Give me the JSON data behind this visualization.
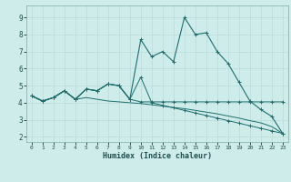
{
  "xlabel": "Humidex (Indice chaleur)",
  "bg_color": "#ceecea",
  "grid_color": "#b8ddd9",
  "line_color": "#1e6e6e",
  "xlim": [
    -0.5,
    23.5
  ],
  "ylim": [
    1.7,
    9.7
  ],
  "xticks": [
    0,
    1,
    2,
    3,
    4,
    5,
    6,
    7,
    8,
    9,
    10,
    11,
    12,
    13,
    14,
    15,
    16,
    17,
    18,
    19,
    20,
    21,
    22,
    23
  ],
  "yticks": [
    2,
    3,
    4,
    5,
    6,
    7,
    8,
    9
  ],
  "line1_x": [
    0,
    1,
    2,
    3,
    4,
    5,
    6,
    7,
    8,
    9,
    10,
    11,
    12,
    13,
    14,
    15,
    16,
    17,
    18,
    19,
    20,
    21,
    22,
    23
  ],
  "line1_y": [
    4.4,
    4.1,
    4.3,
    4.7,
    4.2,
    4.8,
    4.7,
    5.1,
    5.0,
    4.2,
    4.05,
    4.05,
    4.05,
    4.05,
    4.05,
    4.05,
    4.05,
    4.05,
    4.05,
    4.05,
    4.05,
    4.05,
    4.05,
    4.05
  ],
  "line2_x": [
    0,
    1,
    2,
    3,
    4,
    5,
    6,
    7,
    8,
    9,
    10,
    11,
    12,
    13,
    14,
    15,
    16,
    17,
    18,
    19,
    20,
    21,
    22,
    23
  ],
  "line2_y": [
    4.4,
    4.1,
    4.3,
    4.7,
    4.2,
    4.8,
    4.7,
    5.1,
    5.0,
    4.2,
    7.7,
    6.7,
    7.0,
    6.4,
    9.0,
    8.0,
    8.1,
    7.0,
    6.3,
    5.2,
    4.1,
    3.6,
    3.2,
    2.2
  ],
  "line3_x": [
    0,
    1,
    2,
    3,
    4,
    5,
    6,
    7,
    8,
    9,
    10,
    11,
    12,
    13,
    14,
    15,
    16,
    17,
    18,
    19,
    20,
    21,
    22,
    23
  ],
  "line3_y": [
    4.4,
    4.1,
    4.3,
    4.7,
    4.2,
    4.8,
    4.7,
    5.1,
    5.0,
    4.2,
    5.5,
    4.0,
    3.85,
    3.7,
    3.55,
    3.4,
    3.25,
    3.1,
    2.95,
    2.8,
    2.65,
    2.5,
    2.35,
    2.2
  ],
  "line4_x": [
    0,
    1,
    2,
    3,
    4,
    5,
    6,
    7,
    8,
    9,
    10,
    11,
    12,
    13,
    14,
    15,
    16,
    17,
    18,
    19,
    20,
    21,
    22,
    23
  ],
  "line4_y": [
    4.4,
    4.1,
    4.3,
    4.7,
    4.2,
    4.3,
    4.2,
    4.1,
    4.05,
    4.0,
    3.95,
    3.88,
    3.8,
    3.72,
    3.65,
    3.55,
    3.45,
    3.35,
    3.22,
    3.1,
    2.95,
    2.82,
    2.6,
    2.2
  ]
}
